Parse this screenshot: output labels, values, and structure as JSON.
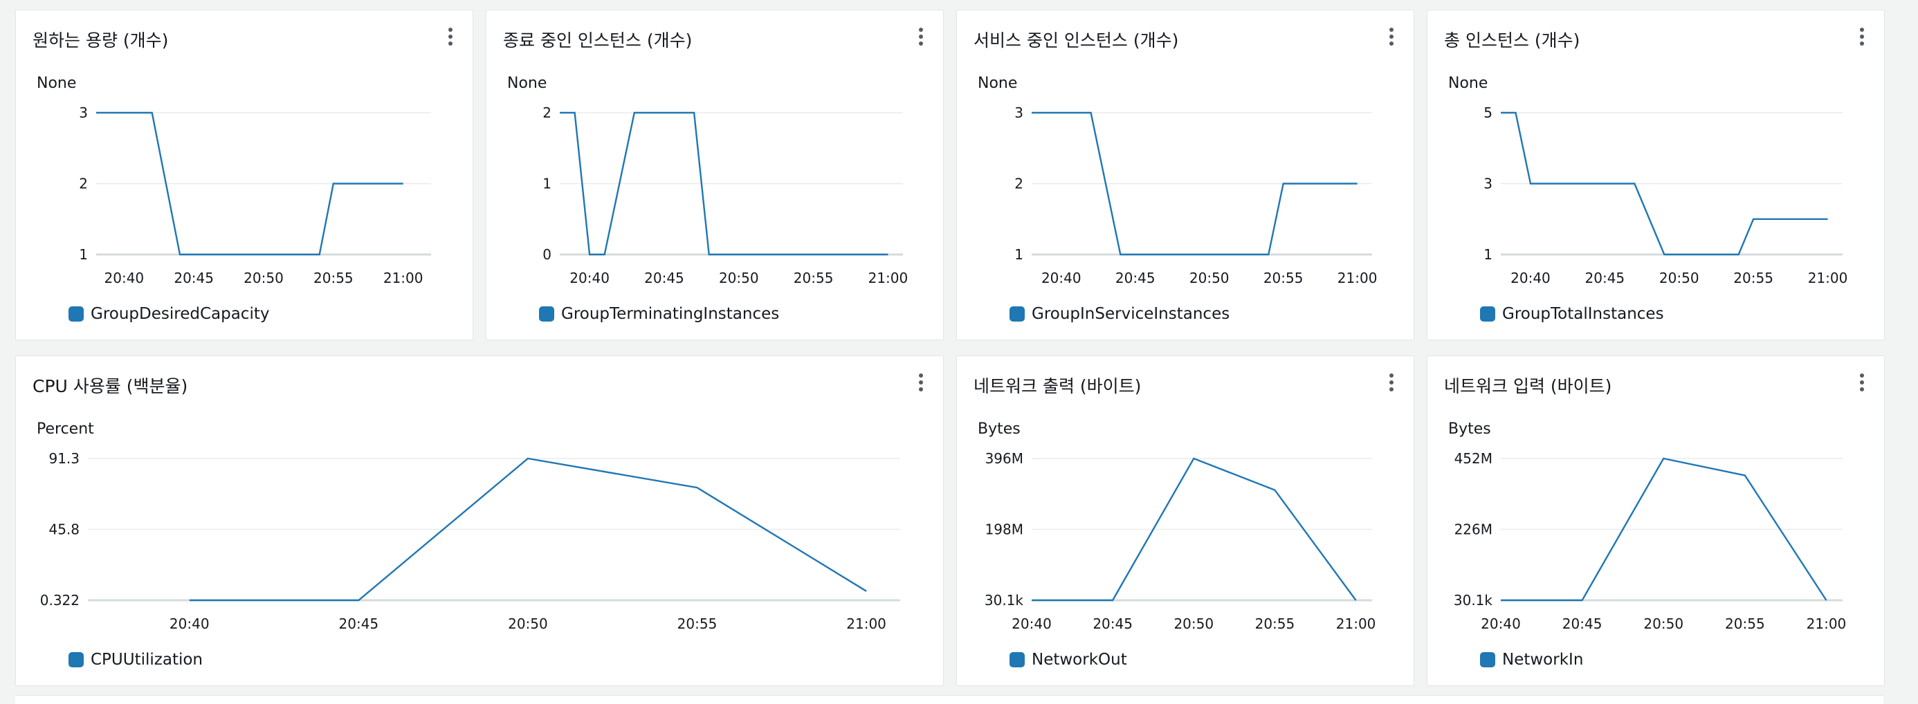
{
  "colors": {
    "line": "#1f77b4",
    "grid": "#e9ebed",
    "axis": "#d5dbdb"
  },
  "widgets": [
    {
      "title": "원하는 용량 (개수)",
      "unit": "None",
      "legend": "GroupDesiredCapacity",
      "chart_data": {
        "type": "line",
        "x": [
          "20:38",
          "20:40",
          "20:42",
          "20:44",
          "20:46",
          "20:48",
          "20:50",
          "20:52",
          "20:54",
          "20:55",
          "20:57",
          "21:00"
        ],
        "series": [
          {
            "name": "GroupDesiredCapacity",
            "values": [
              3,
              3,
              3,
              1,
              1,
              1,
              1,
              1,
              1,
              2,
              2,
              2
            ]
          }
        ],
        "xticks": [
          "20:40",
          "20:45",
          "20:50",
          "20:55",
          "21:00"
        ],
        "yticks": [
          "3",
          "2",
          "1"
        ],
        "ylim": [
          1,
          3
        ],
        "xlim": [
          "20:38",
          "21:02"
        ]
      }
    },
    {
      "title": "종료 중인 인스턴스 (개수)",
      "unit": "None",
      "legend": "GroupTerminatingInstances",
      "chart_data": {
        "type": "line",
        "x": [
          "20:38",
          "20:39",
          "20:40",
          "20:41",
          "20:43",
          "20:47",
          "20:48",
          "21:00"
        ],
        "series": [
          {
            "name": "GroupTerminatingInstances",
            "values": [
              2,
              2,
              0,
              0,
              2,
              2,
              0,
              0
            ]
          }
        ],
        "xticks": [
          "20:40",
          "20:45",
          "20:50",
          "20:55",
          "21:00"
        ],
        "yticks": [
          "2",
          "1",
          "0"
        ],
        "ylim": [
          0,
          2
        ],
        "xlim": [
          "20:38",
          "21:01"
        ]
      }
    },
    {
      "title": "서비스 중인 인스턴스 (개수)",
      "unit": "None",
      "legend": "GroupInServiceInstances",
      "chart_data": {
        "type": "line",
        "x": [
          "20:38",
          "20:42",
          "20:44",
          "20:54",
          "20:55",
          "21:00"
        ],
        "series": [
          {
            "name": "GroupInServiceInstances",
            "values": [
              3,
              3,
              1,
              1,
              2,
              2
            ]
          }
        ],
        "xticks": [
          "20:40",
          "20:45",
          "20:50",
          "20:55",
          "21:00"
        ],
        "yticks": [
          "3",
          "2",
          "1"
        ],
        "ylim": [
          1,
          3
        ],
        "xlim": [
          "20:38",
          "21:01"
        ]
      }
    },
    {
      "title": "총 인스턴스 (개수)",
      "unit": "None",
      "legend": "GroupTotalInstances",
      "chart_data": {
        "type": "line",
        "x": [
          "20:38",
          "20:39",
          "20:40",
          "20:47",
          "20:49",
          "20:54",
          "20:55",
          "21:00"
        ],
        "series": [
          {
            "name": "GroupTotalInstances",
            "values": [
              5,
              5,
              3,
              3,
              1,
              1,
              2,
              2
            ]
          }
        ],
        "xticks": [
          "20:40",
          "20:45",
          "20:50",
          "20:55",
          "21:00"
        ],
        "yticks": [
          "5",
          "3",
          "1"
        ],
        "ylim": [
          1,
          5
        ],
        "xlim": [
          "20:38",
          "21:01"
        ]
      }
    },
    {
      "title": "CPU 사용률 (백분율)",
      "unit": "Percent",
      "legend": "CPUUtilization",
      "chart_data": {
        "type": "line",
        "x": [
          "20:40",
          "20:45",
          "20:50",
          "20:55",
          "21:00"
        ],
        "series": [
          {
            "name": "CPUUtilization",
            "values": [
              0.322,
              0.322,
              91.3,
              72.6,
              6.2
            ]
          }
        ],
        "xticks": [
          "20:40",
          "20:45",
          "20:50",
          "20:55",
          "21:00"
        ],
        "yticks": [
          "91.3",
          "45.8",
          "0.322"
        ],
        "ylim": [
          0.322,
          91.3
        ],
        "xlim": [
          "20:37",
          "21:01"
        ]
      }
    },
    {
      "title": "네트워크 출력 (바이트)",
      "unit": "Bytes",
      "legend": "NetworkOut",
      "chart_data": {
        "type": "line",
        "x": [
          "20:40",
          "20:45",
          "20:50",
          "20:55",
          "21:00"
        ],
        "series": [
          {
            "name": "NetworkOut",
            "values": [
              30100,
              30100,
              396000000,
              308000000,
              30100
            ]
          }
        ],
        "xticks": [
          "20:40",
          "20:45",
          "20:50",
          "20:55",
          "21:00"
        ],
        "yticks": [
          "396M",
          "198M",
          "30.1k"
        ],
        "ylim": [
          30100,
          396000000
        ],
        "xlim": [
          "20:40",
          "21:01"
        ]
      }
    },
    {
      "title": "네트워크 입력 (바이트)",
      "unit": "Bytes",
      "legend": "NetworkIn",
      "chart_data": {
        "type": "line",
        "x": [
          "20:40",
          "20:45",
          "20:50",
          "20:55",
          "21:00"
        ],
        "series": [
          {
            "name": "NetworkIn",
            "values": [
              30100,
              30100,
              452000000,
              398000000,
              30100
            ]
          }
        ],
        "xticks": [
          "20:40",
          "20:45",
          "20:50",
          "20:55",
          "21:00"
        ],
        "yticks": [
          "452M",
          "226M",
          "30.1k"
        ],
        "ylim": [
          30100,
          452000000
        ],
        "xlim": [
          "20:40",
          "21:01"
        ]
      }
    }
  ]
}
